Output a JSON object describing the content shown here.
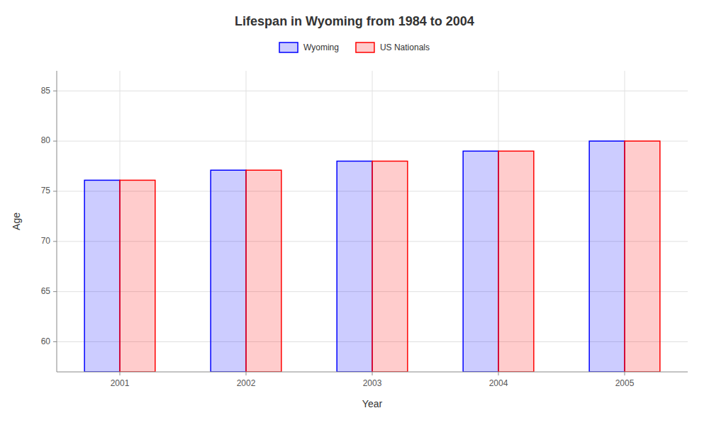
{
  "chart_data": {
    "type": "bar",
    "title": "Lifespan in Wyoming from 1984 to 2004",
    "x_label": "Year",
    "y_label": "Age",
    "categories": [
      "2001",
      "2002",
      "2003",
      "2004",
      "2005"
    ],
    "series": [
      {
        "name": "Wyoming",
        "color": "#0000ff",
        "values": [
          76.1,
          77.1,
          78.0,
          79.0,
          80.0
        ]
      },
      {
        "name": "US Nationals",
        "color": "#ff0000",
        "values": [
          76.1,
          77.1,
          78.0,
          79.0,
          80.0
        ]
      }
    ],
    "ylim": [
      57,
      87
    ],
    "yticks": [
      60,
      65,
      70,
      75,
      80,
      85
    ],
    "grid": true,
    "legend": "top"
  }
}
